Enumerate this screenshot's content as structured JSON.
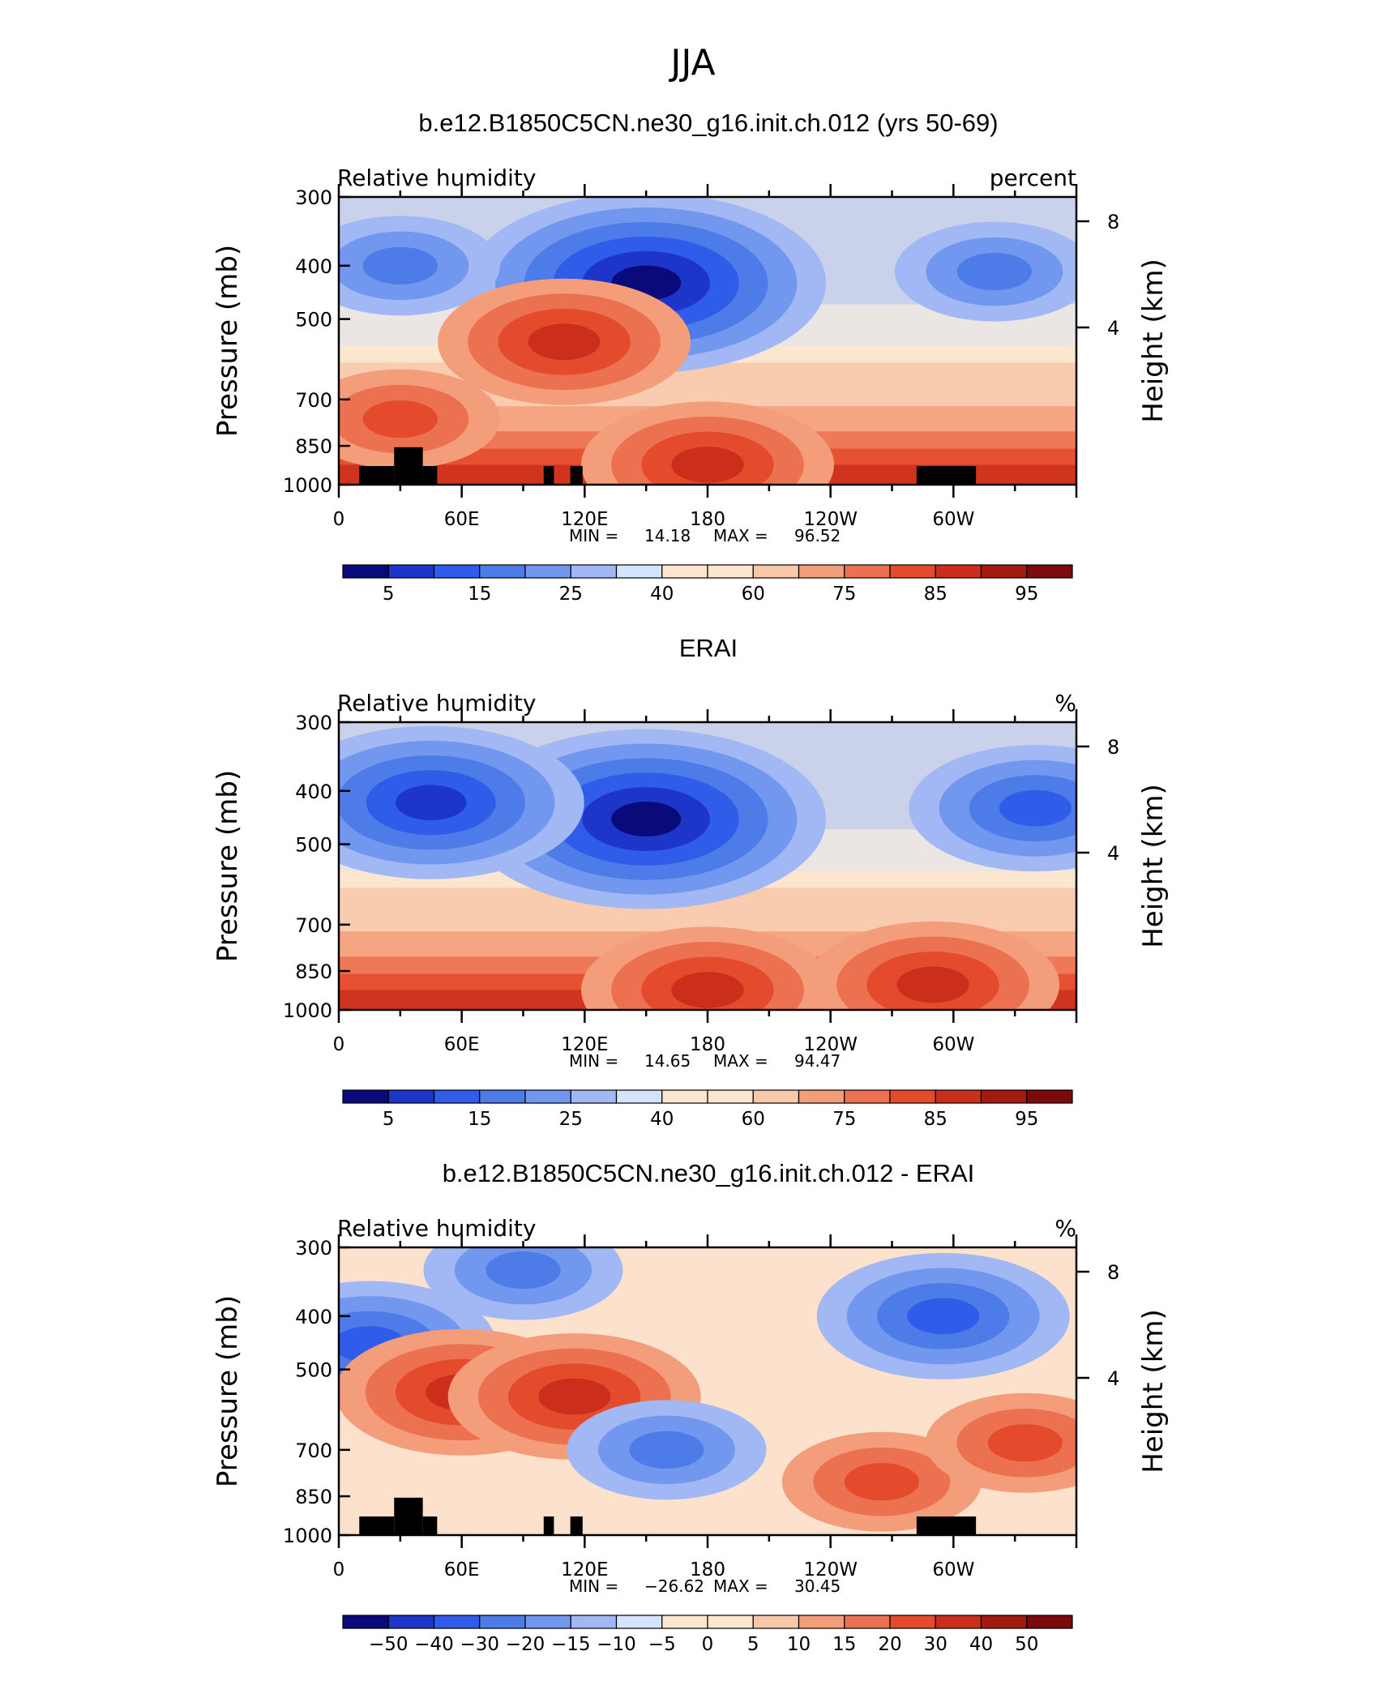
{
  "figure": {
    "title": "JJA"
  },
  "chart_data": [
    {
      "type": "contour",
      "title": "b.e12.B1850C5CN.ne30_g16.init.ch.012 (yrs 50-69)",
      "field_label": "Relative humidity",
      "units": "percent",
      "ylabel": "Pressure (mb)",
      "ylabel_right": "Height (km)",
      "x_ticks": [
        "0",
        "60E",
        "120E",
        "180",
        "120W",
        "60W"
      ],
      "y_ticks": [
        300,
        400,
        500,
        700,
        850,
        1000
      ],
      "y_right_ticks": [
        8,
        4
      ],
      "ylim": [
        1000,
        300
      ],
      "stats": {
        "min_label": "MIN =",
        "min": "14.18",
        "max_label": "MAX =",
        "max": "96.52"
      },
      "colorbar_labels": [
        "5",
        "15",
        "25",
        "40",
        "60",
        "75",
        "85",
        "95"
      ],
      "topography": true,
      "features": [
        {
          "kind": "dry",
          "lon": 150,
          "p": 430,
          "level": 5
        },
        {
          "kind": "dry",
          "lon": 30,
          "p": 400,
          "level": 2
        },
        {
          "kind": "dry",
          "lon": 320,
          "p": 410,
          "level": 2
        },
        {
          "kind": "moist",
          "lon": 110,
          "p": 550,
          "level": 3
        },
        {
          "kind": "moist",
          "lon": 180,
          "p": 920,
          "level": 3
        },
        {
          "kind": "moist",
          "lon": 30,
          "p": 760,
          "level": 2
        }
      ]
    },
    {
      "type": "contour",
      "title": "ERAI",
      "field_label": "Relative humidity",
      "units": "%",
      "ylabel": "Pressure (mb)",
      "ylabel_right": "Height (km)",
      "x_ticks": [
        "0",
        "60E",
        "120E",
        "180",
        "120W",
        "60W"
      ],
      "y_ticks": [
        300,
        400,
        500,
        700,
        850,
        1000
      ],
      "y_right_ticks": [
        8,
        4
      ],
      "ylim": [
        1000,
        300
      ],
      "stats": {
        "min_label": "MIN =",
        "min": "14.65",
        "max_label": "MAX =",
        "max": "94.47"
      },
      "colorbar_labels": [
        "5",
        "15",
        "25",
        "40",
        "60",
        "75",
        "85",
        "95"
      ],
      "topography": false,
      "features": [
        {
          "kind": "dry",
          "lon": 150,
          "p": 450,
          "level": 5
        },
        {
          "kind": "dry",
          "lon": 45,
          "p": 420,
          "level": 4
        },
        {
          "kind": "dry",
          "lon": 340,
          "p": 430,
          "level": 3
        },
        {
          "kind": "moist",
          "lon": 180,
          "p": 920,
          "level": 3
        },
        {
          "kind": "moist",
          "lon": 290,
          "p": 900,
          "level": 3
        }
      ]
    },
    {
      "type": "contour",
      "title": "b.e12.B1850C5CN.ne30_g16.init.ch.012 - ERAI",
      "field_label": "Relative humidity",
      "units": "%",
      "ylabel": "Pressure (mb)",
      "ylabel_right": "Height (km)",
      "x_ticks": [
        "0",
        "60E",
        "120E",
        "180",
        "120W",
        "60W"
      ],
      "y_ticks": [
        300,
        400,
        500,
        700,
        850,
        1000
      ],
      "y_right_ticks": [
        8,
        4
      ],
      "ylim": [
        1000,
        300
      ],
      "stats": {
        "min_label": "MIN =",
        "min": "−26.62",
        "max_label": "MAX =",
        "max": "30.45"
      },
      "colorbar_labels": [
        "−50",
        "−40",
        "−30",
        "−20",
        "−15",
        "−10",
        "−5",
        "0",
        "5",
        "10",
        "15",
        "20",
        "30",
        "40",
        "50"
      ],
      "topography": true,
      "features": [
        {
          "kind": "dry",
          "lon": 15,
          "p": 450,
          "level": 3
        },
        {
          "kind": "moist",
          "lon": 60,
          "p": 550,
          "level": 3
        },
        {
          "kind": "moist",
          "lon": 115,
          "p": 560,
          "level": 3
        },
        {
          "kind": "dry",
          "lon": 90,
          "p": 330,
          "level": 2
        },
        {
          "kind": "dry",
          "lon": 160,
          "p": 700,
          "level": 2
        },
        {
          "kind": "moist",
          "lon": 265,
          "p": 800,
          "level": 2
        },
        {
          "kind": "moist",
          "lon": 335,
          "p": 680,
          "level": 2
        },
        {
          "kind": "dry",
          "lon": 295,
          "p": 400,
          "level": 3
        }
      ]
    }
  ],
  "colormap": [
    "#0a0a7a",
    "#1d35c8",
    "#2f5ce8",
    "#4d7be8",
    "#7197ef",
    "#a2b8f4",
    "#d4e4fb",
    "#fde6d0",
    "#f9c7a9",
    "#f49d7a",
    "#ec7151",
    "#e44a2c",
    "#cb2f1c",
    "#a31a11",
    "#7d0a0a"
  ],
  "topography_color": "#000000"
}
